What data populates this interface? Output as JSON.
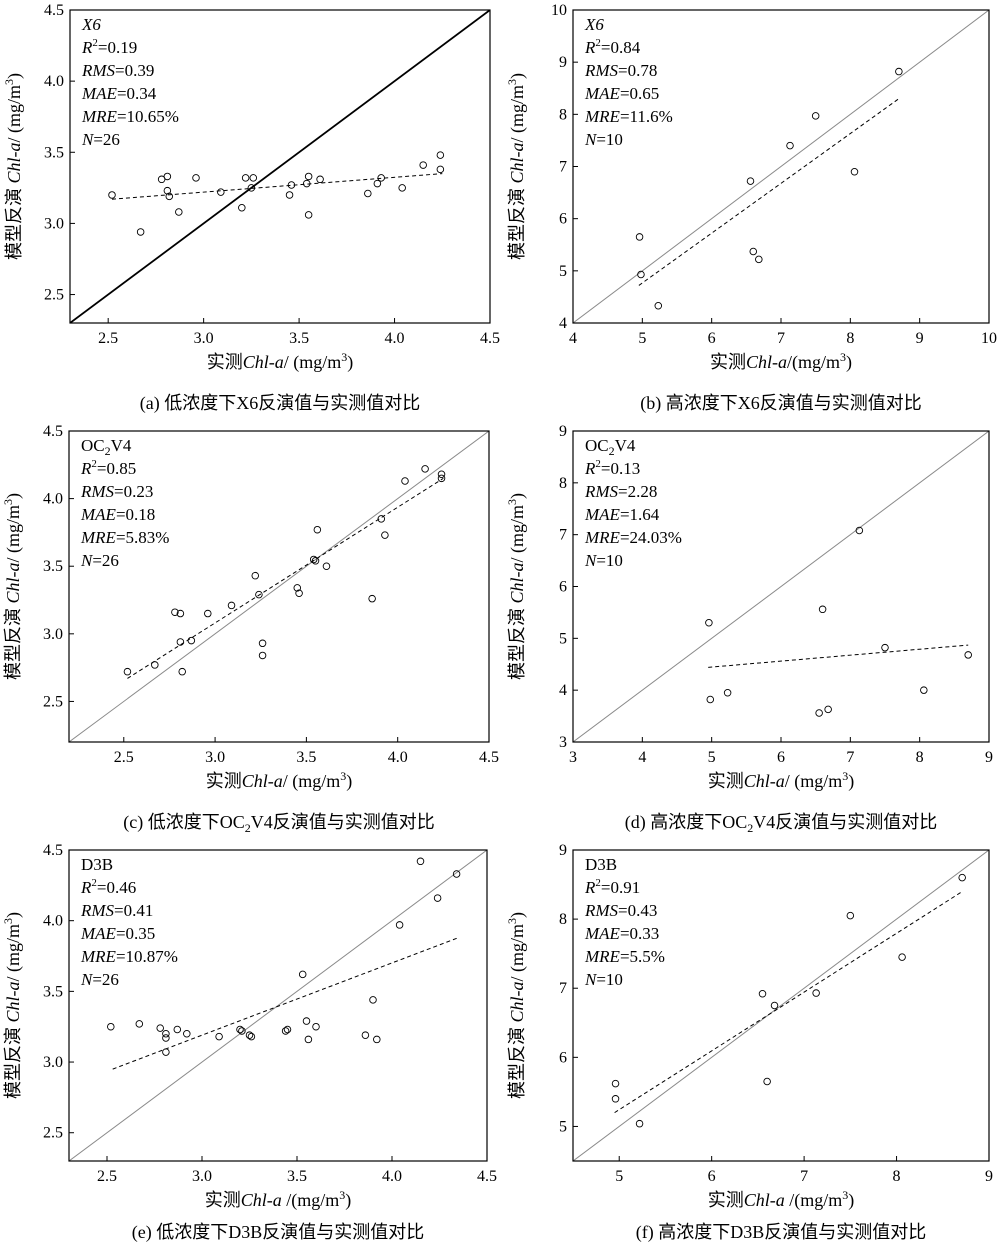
{
  "chart_data": [
    {
      "type": "scatter",
      "model": "X6",
      "model_italic": true,
      "stats": {
        "R2": "0.19",
        "RMS": "0.39",
        "MAE": "0.34",
        "MRE": "10.65%",
        "N": "26"
      },
      "xlabel": "实测Chl-a/ (mg/m³)",
      "ylabel": "模型反演 Chl-a/ (mg/m³)",
      "xlim": [
        2.3,
        4.5
      ],
      "ylim": [
        2.3,
        4.5
      ],
      "xticks": [
        "2.5",
        "3.0",
        "3.5",
        "4.0",
        "4.5"
      ],
      "yticks": [
        "2.5",
        "3.0",
        "3.5",
        "4.0",
        "4.5"
      ],
      "one_to_one_line": "bold",
      "fit_line": [
        [
          2.52,
          3.17
        ],
        [
          4.25,
          3.35
        ]
      ],
      "points": [
        [
          2.52,
          3.2
        ],
        [
          2.67,
          2.94
        ],
        [
          2.78,
          3.31
        ],
        [
          2.81,
          3.33
        ],
        [
          2.81,
          3.23
        ],
        [
          2.82,
          3.19
        ],
        [
          2.87,
          3.08
        ],
        [
          2.96,
          3.32
        ],
        [
          3.09,
          3.22
        ],
        [
          3.2,
          3.11
        ],
        [
          3.22,
          3.32
        ],
        [
          3.26,
          3.32
        ],
        [
          3.25,
          3.25
        ],
        [
          3.45,
          3.2
        ],
        [
          3.46,
          3.27
        ],
        [
          3.54,
          3.28
        ],
        [
          3.55,
          3.33
        ],
        [
          3.55,
          3.06
        ],
        [
          3.61,
          3.31
        ],
        [
          3.86,
          3.21
        ],
        [
          3.91,
          3.28
        ],
        [
          3.93,
          3.32
        ],
        [
          4.04,
          3.25
        ],
        [
          4.15,
          3.41
        ],
        [
          4.24,
          3.38
        ],
        [
          4.24,
          3.48
        ]
      ],
      "caption": "(a) 低浓度下X6反演值与实测值对比"
    },
    {
      "type": "scatter",
      "model": "X6",
      "model_italic": true,
      "stats": {
        "R2": "0.84",
        "RMS": "0.78",
        "MAE": "0.65",
        "MRE": "11.6%",
        "N": "10"
      },
      "xlabel": "实测Chl-a/(mg/m³)",
      "ylabel": "模型反演 Chl-a/ (mg/m³)",
      "xlim": [
        4,
        10
      ],
      "ylim": [
        4,
        10
      ],
      "xticks": [
        "4",
        "5",
        "6",
        "7",
        "8",
        "9",
        "10"
      ],
      "yticks": [
        "4",
        "5",
        "6",
        "7",
        "8",
        "9",
        "10"
      ],
      "one_to_one_line": "thin",
      "fit_line": [
        [
          4.95,
          4.72
        ],
        [
          8.7,
          8.3
        ]
      ],
      "points": [
        [
          4.96,
          5.65
        ],
        [
          4.98,
          4.93
        ],
        [
          5.23,
          4.33
        ],
        [
          6.56,
          6.72
        ],
        [
          6.6,
          5.37
        ],
        [
          6.68,
          5.22
        ],
        [
          7.13,
          7.4
        ],
        [
          7.5,
          7.97
        ],
        [
          8.06,
          6.9
        ],
        [
          8.7,
          8.82
        ]
      ],
      "caption": "(b) 高浓度下X6反演值与实测值对比"
    },
    {
      "type": "scatter",
      "model": "OC₂V4",
      "model_italic": false,
      "stats": {
        "R2": "0.85",
        "RMS": "0.23",
        "MAE": "0.18",
        "MRE": "5.83%",
        "N": "26"
      },
      "xlabel": "实测Chl-a/ (mg/m³)",
      "ylabel": "模型反演 Chl-a/ (mg/m³)",
      "xlim": [
        2.2,
        4.5
      ],
      "ylim": [
        2.2,
        4.5
      ],
      "xticks": [
        "2.5",
        "3.0",
        "3.5",
        "4.0",
        "4.5"
      ],
      "yticks": [
        "2.5",
        "3.0",
        "3.5",
        "4.0",
        "4.5"
      ],
      "one_to_one_line": "thin",
      "fit_line": [
        [
          2.52,
          2.67
        ],
        [
          4.25,
          4.15
        ]
      ],
      "points": [
        [
          2.52,
          2.72
        ],
        [
          2.67,
          2.77
        ],
        [
          2.78,
          3.16
        ],
        [
          2.81,
          3.15
        ],
        [
          2.81,
          2.94
        ],
        [
          2.82,
          2.72
        ],
        [
          2.87,
          2.95
        ],
        [
          2.96,
          3.15
        ],
        [
          3.09,
          3.21
        ],
        [
          3.22,
          3.43
        ],
        [
          3.24,
          3.29
        ],
        [
          3.26,
          2.93
        ],
        [
          3.26,
          2.84
        ],
        [
          3.45,
          3.34
        ],
        [
          3.46,
          3.3
        ],
        [
          3.54,
          3.55
        ],
        [
          3.55,
          3.54
        ],
        [
          3.56,
          3.77
        ],
        [
          3.61,
          3.5
        ],
        [
          3.86,
          3.26
        ],
        [
          3.91,
          3.85
        ],
        [
          3.93,
          3.73
        ],
        [
          4.04,
          4.13
        ],
        [
          4.15,
          4.22
        ],
        [
          4.24,
          4.18
        ],
        [
          4.24,
          4.15
        ]
      ],
      "caption": "(c) 低浓度下OC₂V4反演值与实测值对比"
    },
    {
      "type": "scatter",
      "model": "OC₂V4",
      "model_italic": false,
      "stats": {
        "R2": "0.13",
        "RMS": "2.28",
        "MAE": "1.64",
        "MRE": "24.03%",
        "N": "10"
      },
      "xlabel": "实测Chl-a/ (mg/m³)",
      "ylabel": "模型反演 Chl-a/ (mg/m³)",
      "xlim": [
        3,
        9
      ],
      "ylim": [
        3,
        9
      ],
      "xticks": [
        "3",
        "4",
        "5",
        "6",
        "7",
        "8",
        "9"
      ],
      "yticks": [
        "3",
        "4",
        "5",
        "6",
        "7",
        "8",
        "9"
      ],
      "one_to_one_line": "thin",
      "fit_line": [
        [
          4.95,
          4.44
        ],
        [
          8.7,
          4.87
        ]
      ],
      "points": [
        [
          4.96,
          5.3
        ],
        [
          4.98,
          3.82
        ],
        [
          5.23,
          3.95
        ],
        [
          6.55,
          3.56
        ],
        [
          6.6,
          5.56
        ],
        [
          6.68,
          3.63
        ],
        [
          7.13,
          7.08
        ],
        [
          7.5,
          4.82
        ],
        [
          8.06,
          4.0
        ],
        [
          8.7,
          4.68
        ]
      ],
      "caption": "(d) 高浓度下OC₂V4反演值与实测值对比"
    },
    {
      "type": "scatter",
      "model": "D3B",
      "model_italic": false,
      "stats": {
        "R2": "0.46",
        "RMS": "0.41",
        "MAE": "0.35",
        "MRE": "10.87%",
        "N": "26"
      },
      "xlabel": "实测Chl-a /(mg/m³)",
      "ylabel": "模型反演 Chl-a/ (mg/m³)",
      "xlim": [
        2.3,
        4.5
      ],
      "ylim": [
        2.3,
        4.5
      ],
      "xticks": [
        "2.5",
        "3.0",
        "3.5",
        "4.0",
        "4.5"
      ],
      "yticks": [
        "2.5",
        "3.0",
        "3.5",
        "4.0",
        "4.5"
      ],
      "one_to_one_line": "thin",
      "fit_line": [
        [
          2.53,
          2.95
        ],
        [
          4.35,
          3.88
        ]
      ],
      "points": [
        [
          2.52,
          3.25
        ],
        [
          2.67,
          3.27
        ],
        [
          2.78,
          3.24
        ],
        [
          2.81,
          3.2
        ],
        [
          2.81,
          3.17
        ],
        [
          2.81,
          3.07
        ],
        [
          2.87,
          3.23
        ],
        [
          2.92,
          3.2
        ],
        [
          3.09,
          3.18
        ],
        [
          3.2,
          3.23
        ],
        [
          3.21,
          3.22
        ],
        [
          3.25,
          3.19
        ],
        [
          3.26,
          3.18
        ],
        [
          3.44,
          3.22
        ],
        [
          3.45,
          3.23
        ],
        [
          3.53,
          3.62
        ],
        [
          3.55,
          3.29
        ],
        [
          3.56,
          3.16
        ],
        [
          3.6,
          3.25
        ],
        [
          3.86,
          3.19
        ],
        [
          3.9,
          3.44
        ],
        [
          3.92,
          3.16
        ],
        [
          4.04,
          3.97
        ],
        [
          4.15,
          4.42
        ],
        [
          4.24,
          4.16
        ],
        [
          4.34,
          4.33
        ]
      ],
      "caption": "(e) 低浓度下D3B反演值与实测值对比"
    },
    {
      "type": "scatter",
      "model": "D3B",
      "model_italic": false,
      "stats": {
        "R2": "0.91",
        "RMS": "0.43",
        "MAE": "0.33",
        "MRE": "5.5%",
        "N": "10"
      },
      "xlabel": "实测Chl-a /(mg/m³)",
      "ylabel": "模型反演 Chl-a/ (mg/m³)",
      "xlim": [
        4.5,
        9
      ],
      "ylim": [
        4.5,
        9
      ],
      "xticks": [
        "5",
        "6",
        "7",
        "8",
        "9"
      ],
      "yticks": [
        "5",
        "6",
        "7",
        "8",
        "9"
      ],
      "one_to_one_line": "thin",
      "fit_line": [
        [
          4.95,
          5.2
        ],
        [
          8.7,
          8.39
        ]
      ],
      "points": [
        [
          4.96,
          5.62
        ],
        [
          4.96,
          5.4
        ],
        [
          5.22,
          5.04
        ],
        [
          6.55,
          6.92
        ],
        [
          6.6,
          5.65
        ],
        [
          6.68,
          6.75
        ],
        [
          7.13,
          6.93
        ],
        [
          7.5,
          8.05
        ],
        [
          8.06,
          7.45
        ],
        [
          8.71,
          8.6
        ]
      ],
      "caption": "(f) 高浓度下D3B反演值与实测值对比"
    }
  ]
}
